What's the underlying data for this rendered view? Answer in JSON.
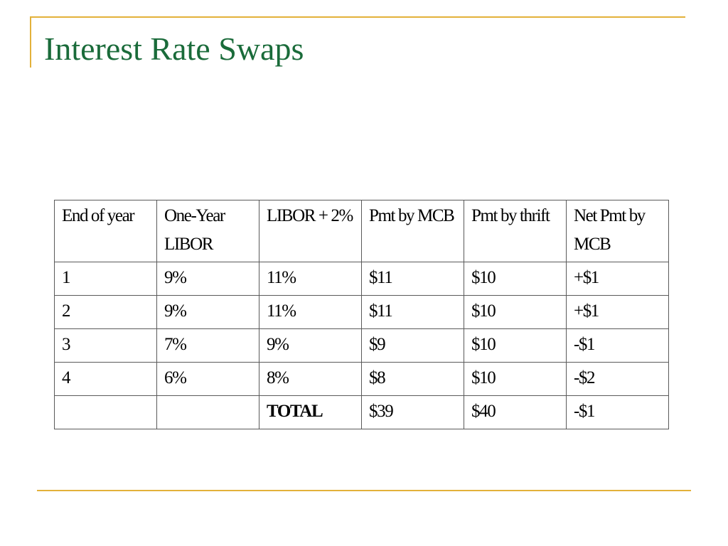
{
  "slide": {
    "title": "Interest Rate Swaps"
  },
  "colors": {
    "title": "#1a6b3a",
    "accent": "#e3b13a",
    "table_border": "#5a5a5a"
  },
  "table": {
    "headers": [
      "End of year",
      "One-Year LIBOR",
      "LIBOR + 2%",
      "Pmt by MCB",
      "Pmt by thrift",
      "Net Pmt by MCB"
    ],
    "rows": [
      [
        "1",
        "9%",
        "11%",
        "$11",
        "$10",
        "+$1"
      ],
      [
        "2",
        "9%",
        "11%",
        "$11",
        "$10",
        "+$1"
      ],
      [
        "3",
        "7%",
        "9%",
        "$9",
        "$10",
        "-$1"
      ],
      [
        "4",
        "6%",
        "8%",
        "$8",
        "$10",
        "-$2"
      ],
      [
        "",
        "",
        "TOTAL",
        "$39",
        "$40",
        "-$1"
      ]
    ]
  }
}
